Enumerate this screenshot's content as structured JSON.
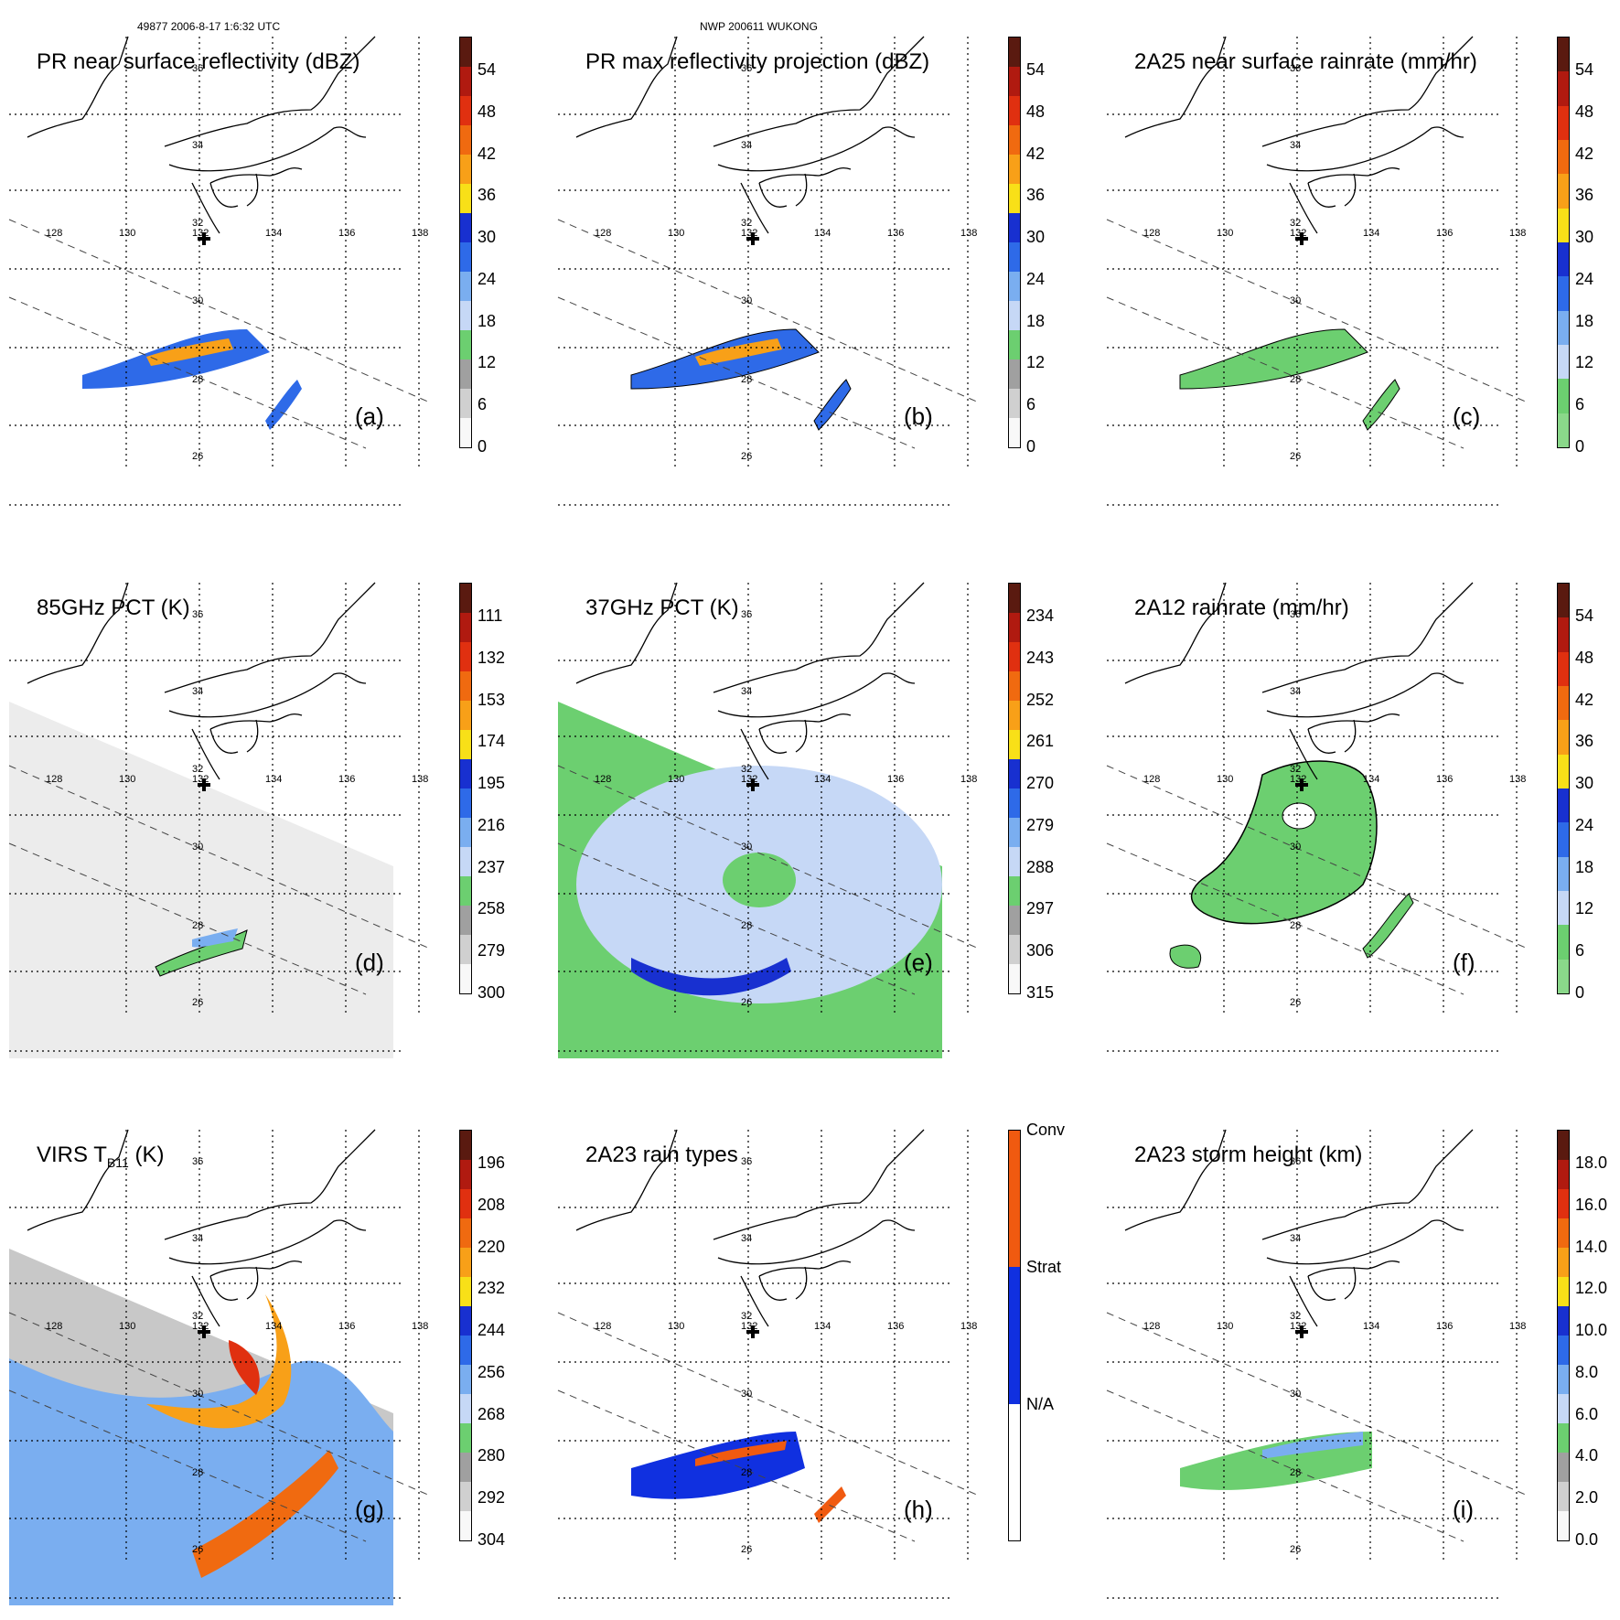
{
  "header": {
    "orbit_line": "49877 2006-8-17 1:6:32 UTC",
    "storm_line": "NWP 200611 WUKONG"
  },
  "grid": {
    "lat_labels": [
      "36",
      "34",
      "32",
      "30",
      "28",
      "26"
    ],
    "lon_labels": [
      "128",
      "130",
      "132",
      "134",
      "136",
      "138"
    ]
  },
  "panels": [
    {
      "id": "a",
      "title": "PR near surface reflectivity (dBZ)",
      "label": "(a)",
      "ticks": [
        "54",
        "48",
        "42",
        "36",
        "30",
        "24",
        "18",
        "12",
        "6",
        "0"
      ],
      "colors": [
        "#5a1a10",
        "#b01a10",
        "#e03010",
        "#f06a10",
        "#f8a018",
        "#f8e018",
        "#1830d0",
        "#2e6ae8",
        "#7aaef0",
        "#c6d8f6",
        "#6ccf70",
        "#a0a0a0",
        "#d0d0d0",
        "#f8f8f8"
      ]
    },
    {
      "id": "b",
      "title": "PR max reflectivity projection (dBZ)",
      "label": "(b)",
      "ticks": [
        "54",
        "48",
        "42",
        "36",
        "30",
        "24",
        "18",
        "12",
        "6",
        "0"
      ],
      "colors": [
        "#5a1a10",
        "#b01a10",
        "#e03010",
        "#f06a10",
        "#f8a018",
        "#f8e018",
        "#1830d0",
        "#2e6ae8",
        "#7aaef0",
        "#c6d8f6",
        "#6ccf70",
        "#a0a0a0",
        "#d0d0d0",
        "#f8f8f8"
      ]
    },
    {
      "id": "c",
      "title": "2A25 near surface rainrate (mm/hr)",
      "label": "(c)",
      "ticks": [
        "54",
        "48",
        "42",
        "36",
        "30",
        "24",
        "18",
        "12",
        "6",
        "0"
      ],
      "colors": [
        "#5a1a10",
        "#b01a10",
        "#e03010",
        "#f06a10",
        "#f8a018",
        "#f8e018",
        "#1830d0",
        "#2e6ae8",
        "#7aaef0",
        "#c6d8f6",
        "#6ccf70",
        "#8ad88a"
      ]
    },
    {
      "id": "d",
      "title": "85GHz PCT (K)",
      "label": "(d)",
      "ticks": [
        "111",
        "132",
        "153",
        "174",
        "195",
        "216",
        "237",
        "258",
        "279",
        "300"
      ],
      "colors": [
        "#5a1a10",
        "#b01a10",
        "#e03010",
        "#f06a10",
        "#f8a018",
        "#f8e018",
        "#1830d0",
        "#2e6ae8",
        "#7aaef0",
        "#c6d8f6",
        "#6ccf70",
        "#a0a0a0",
        "#d0d0d0",
        "#f8f8f8"
      ]
    },
    {
      "id": "e",
      "title": "37GHz PCT (K)",
      "label": "(e)",
      "ticks": [
        "234",
        "243",
        "252",
        "261",
        "270",
        "279",
        "288",
        "297",
        "306",
        "315"
      ],
      "colors": [
        "#5a1a10",
        "#b01a10",
        "#e03010",
        "#f06a10",
        "#f8a018",
        "#f8e018",
        "#1830d0",
        "#2e6ae8",
        "#7aaef0",
        "#c6d8f6",
        "#6ccf70",
        "#a0a0a0",
        "#d0d0d0",
        "#f8f8f8"
      ]
    },
    {
      "id": "f",
      "title": "2A12 rainrate (mm/hr)",
      "label": "(f)",
      "ticks": [
        "54",
        "48",
        "42",
        "36",
        "30",
        "24",
        "18",
        "12",
        "6",
        "0"
      ],
      "colors": [
        "#5a1a10",
        "#b01a10",
        "#e03010",
        "#f06a10",
        "#f8a018",
        "#f8e018",
        "#1830d0",
        "#2e6ae8",
        "#7aaef0",
        "#c6d8f6",
        "#6ccf70",
        "#8ad88a"
      ]
    },
    {
      "id": "g",
      "title": "VIRS T",
      "title_sub": "B11",
      "title_suffix": " (K)",
      "label": "(g)",
      "ticks": [
        "196",
        "208",
        "220",
        "232",
        "244",
        "256",
        "268",
        "280",
        "292",
        "304"
      ],
      "colors": [
        "#5a1a10",
        "#b01a10",
        "#e03010",
        "#f06a10",
        "#f8a018",
        "#f8e018",
        "#1830d0",
        "#2e6ae8",
        "#7aaef0",
        "#c6d8f6",
        "#6ccf70",
        "#a0a0a0",
        "#d0d0d0",
        "#f8f8f8"
      ]
    },
    {
      "id": "h",
      "title": "2A23 rain types",
      "label": "(h)",
      "ticks": [
        "Conv",
        "Strat",
        "N/A"
      ],
      "colors": [
        "#f05a10",
        "#1030e0",
        "#ffffff"
      ]
    },
    {
      "id": "i",
      "title": "2A23 storm height (km)",
      "label": "(i)",
      "ticks": [
        "18.0",
        "16.0",
        "14.0",
        "12.0",
        "10.0",
        "8.0",
        "6.0",
        "4.0",
        "2.0",
        "0.0"
      ],
      "colors": [
        "#5a1a10",
        "#b01a10",
        "#e03010",
        "#f06a10",
        "#f8a018",
        "#f8e018",
        "#1830d0",
        "#2e6ae8",
        "#7aaef0",
        "#c6d8f6",
        "#6ccf70",
        "#a0a0a0",
        "#d0d0d0",
        "#f8f8f8"
      ]
    }
  ]
}
